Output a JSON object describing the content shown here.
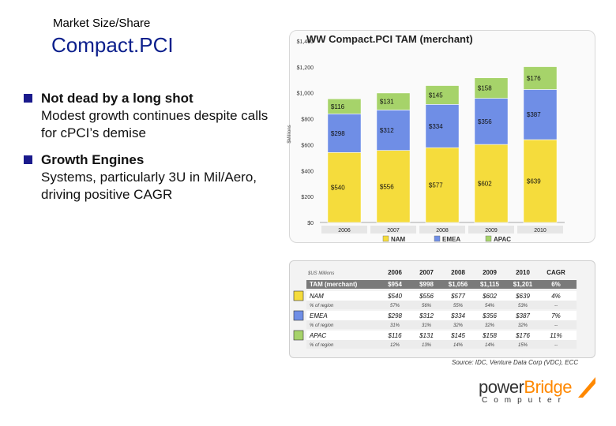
{
  "slide": {
    "subtitle": "Market Size/Share",
    "title": "Compact.PCI",
    "bullets": [
      {
        "head": "Not dead by a long shot",
        "body": "Modest growth continues despite calls for cPCI’s demise"
      },
      {
        "head": "Growth Engines",
        "body": "Systems, particularly 3U in Mil/Aero, driving positive CAGR"
      }
    ],
    "source": "Source: IDC, Venture Data Corp (VDC), ECC",
    "logo": {
      "part1": "power",
      "part2": "Bridge",
      "sub": "Computer"
    }
  },
  "colors": {
    "nam": "#f5dc3c",
    "emea": "#6f8ee6",
    "apac": "#a6d36a",
    "title_blue": "#0b1f8c",
    "accent_orange": "#ff8800"
  },
  "chart_data": {
    "type": "bar",
    "title": "WW Compact.PCI TAM (merchant)",
    "ylabel": "$Millions",
    "ylim": [
      0,
      1400
    ],
    "y_ticks": [
      "$0",
      "$200",
      "$400",
      "$600",
      "$800",
      "$1,000",
      "$1,200",
      "$1,400"
    ],
    "y_tick_values": [
      0,
      200,
      400,
      600,
      800,
      1000,
      1200,
      1400
    ],
    "categories": [
      "2006",
      "2007",
      "2008",
      "2009",
      "2010"
    ],
    "series": [
      {
        "name": "NAM",
        "values": [
          540,
          556,
          577,
          602,
          639
        ],
        "labels": [
          "$540",
          "$556",
          "$577",
          "$602",
          "$639"
        ],
        "color": "#f5dc3c"
      },
      {
        "name": "EMEA",
        "values": [
          298,
          312,
          334,
          356,
          387
        ],
        "labels": [
          "$298",
          "$312",
          "$334",
          "$356",
          "$387"
        ],
        "color": "#6f8ee6"
      },
      {
        "name": "APAC",
        "values": [
          116,
          131,
          145,
          158,
          176
        ],
        "labels": [
          "$116",
          "$131",
          "$145",
          "$158",
          "$176"
        ],
        "color": "#a6d36a"
      }
    ],
    "legend": "bottom",
    "grid": false
  },
  "table": {
    "unit_label": "$US Millions",
    "headers": [
      "2006",
      "2007",
      "2008",
      "2009",
      "2010",
      "CAGR"
    ],
    "rows": [
      {
        "label": "TAM (merchant)",
        "type": "total",
        "values": [
          "$954",
          "$998",
          "$1,056",
          "$1,115",
          "$1,201",
          "6%"
        ]
      },
      {
        "label": "NAM",
        "type": "region",
        "values": [
          "$540",
          "$556",
          "$577",
          "$602",
          "$639",
          "4%"
        ]
      },
      {
        "label": "% of region",
        "type": "share",
        "values": [
          "57%",
          "56%",
          "55%",
          "54%",
          "53%",
          "--"
        ]
      },
      {
        "label": "EMEA",
        "type": "region",
        "values": [
          "$298",
          "$312",
          "$334",
          "$356",
          "$387",
          "7%"
        ]
      },
      {
        "label": "% of region",
        "type": "share",
        "values": [
          "31%",
          "31%",
          "32%",
          "32%",
          "32%",
          "--"
        ]
      },
      {
        "label": "APAC",
        "type": "region",
        "values": [
          "$116",
          "$131",
          "$145",
          "$158",
          "$176",
          "11%"
        ]
      },
      {
        "label": "% of region",
        "type": "share",
        "values": [
          "12%",
          "13%",
          "14%",
          "14%",
          "15%",
          "--"
        ]
      }
    ]
  }
}
